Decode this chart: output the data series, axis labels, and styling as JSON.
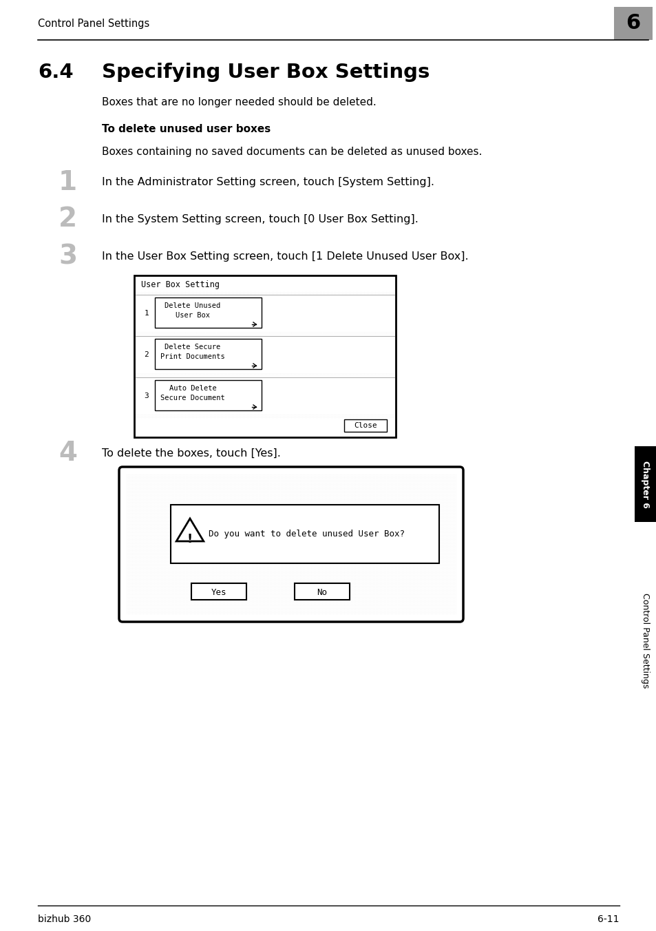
{
  "page_title": "Control Panel Settings",
  "chapter_num": "6",
  "section_num": "6.4",
  "section_title": "Specifying User Box Settings",
  "intro_text": "Boxes that are no longer needed should be deleted.",
  "subsection_title": "To delete unused user boxes",
  "subsection_desc": "Boxes containing no saved documents can be deleted as unused boxes.",
  "steps": [
    {
      "num": "1",
      "text": "In the Administrator Setting screen, touch [System Setting]."
    },
    {
      "num": "2",
      "text": "In the System Setting screen, touch [0 User Box Setting]."
    },
    {
      "num": "3",
      "text": "In the User Box Setting screen, touch [1 Delete Unused User Box]."
    },
    {
      "num": "4",
      "text": "To delete the boxes, touch [Yes]."
    }
  ],
  "screen1_title": "User Box Setting",
  "screen1_buttons": [
    {
      "num": "1",
      "label": "Delete Unused\nUser Box"
    },
    {
      "num": "2",
      "label": "Delete Secure\nPrint Documents"
    },
    {
      "num": "3",
      "label": "Auto Delete\nSecure Document"
    }
  ],
  "screen1_close": "Close",
  "screen2_text": "Do you want to delete unused User Box?",
  "screen2_btn1": "Yes",
  "screen2_btn2": "No",
  "footer_left": "bizhub 360",
  "footer_right": "6-11",
  "sidebar_text": "Control Panel Settings",
  "sidebar_chapter": "Chapter 6",
  "bg_color": "#ffffff",
  "stipple_color": "#b0b0b0",
  "screen_border": "#000000",
  "chapter_box_color": "#999999"
}
